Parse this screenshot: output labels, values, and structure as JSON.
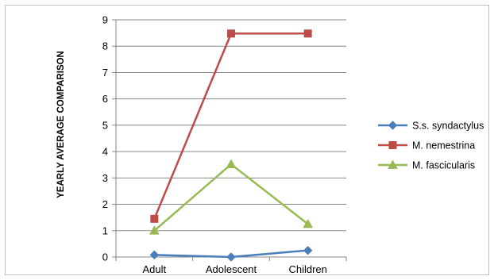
{
  "chart_data": {
    "type": "line",
    "title": "",
    "xlabel": "",
    "ylabel": "YEARLY AVERAGE COMPARISON",
    "categories": [
      "Adult",
      "Adolescent",
      "Children"
    ],
    "ylim": [
      0,
      9
    ],
    "yticks": [
      0,
      1,
      2,
      3,
      4,
      5,
      6,
      7,
      8,
      9
    ],
    "grid": true,
    "legend_position": "right",
    "series": [
      {
        "name": "S.s. syndactylus",
        "values": [
          0.08,
          0.0,
          0.25
        ],
        "color": "#4a7ebb",
        "marker": "diamond"
      },
      {
        "name": "M. nemestrina",
        "values": [
          1.45,
          8.48,
          8.48
        ],
        "color": "#be4b48",
        "marker": "square"
      },
      {
        "name": "M. fascicularis",
        "values": [
          1.0,
          3.52,
          1.25
        ],
        "color": "#98b954",
        "marker": "triangle"
      }
    ]
  }
}
